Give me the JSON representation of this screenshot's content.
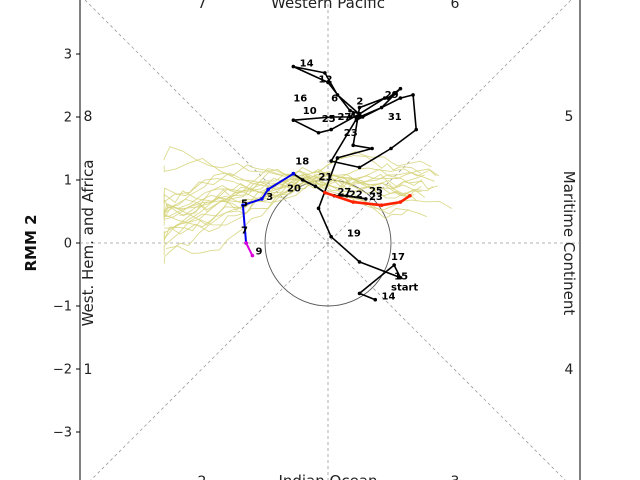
{
  "chart_data": {
    "type": "line",
    "ylabel": "RMM 2",
    "xlim": [
      -4,
      4
    ],
    "ylim": [
      -3.8,
      3.8
    ],
    "yticks": [
      3,
      2,
      1,
      0,
      -1,
      -2,
      -3
    ],
    "ytick_labels": [
      "3",
      "2",
      "1",
      "0",
      "−1",
      "−2",
      "−3"
    ],
    "unit_circle_radius": 1,
    "phase_labels": [
      "1",
      "2",
      "3",
      "4",
      "5",
      "6",
      "7",
      "8"
    ],
    "region_labels": {
      "left": "West. Hem. and Africa",
      "right": "Maritime Continent",
      "top": "Western Pacific",
      "bottom": "Indian Ocean"
    },
    "colors": {
      "ensemble": "#d6d37a",
      "observed": "#000000",
      "segment_a": "#0000ee",
      "segment_b": "#dd00dd",
      "segment_c": "#ff2200"
    },
    "observed": {
      "x": [
        0.75,
        0.5,
        1.05,
        1.15,
        0.5,
        0.05,
        -0.15,
        0.15,
        0.7,
        0.4,
        0.5,
        0.9,
        0.5,
        0.05,
        -0.15,
        -0.55,
        0.05,
        0.55,
        0.15,
        -0.05,
        -0.55,
        0.0,
        0.35,
        0.5,
        0.05,
        0.5,
        1.0,
        1.4,
        1.35,
        1.15,
        0.45,
        0.4,
        0.35,
        0.5,
        0.85,
        1.15,
        0.95
      ],
      "y": [
        -0.9,
        -0.8,
        -0.35,
        -0.55,
        -0.3,
        0.1,
        0.55,
        1.35,
        1.5,
        1.55,
        2.15,
        2.3,
        2.05,
        1.8,
        1.75,
        1.95,
        2.0,
        2.0,
        2.35,
        2.7,
        2.8,
        2.55,
        2.1,
        2.05,
        1.3,
        1.2,
        1.5,
        1.8,
        2.35,
        2.3,
        1.95,
        2.05,
        2.0,
        2.0,
        2.15,
        2.45,
        2.3
      ]
    },
    "observed_labels": [
      {
        "text": "start",
        "x": 1.0,
        "y": -0.75
      },
      {
        "text": "15",
        "x": 1.05,
        "y": -0.58
      },
      {
        "text": "14",
        "x": 0.85,
        "y": -0.9
      },
      {
        "text": "17",
        "x": 1.0,
        "y": -0.27
      },
      {
        "text": "19",
        "x": 0.3,
        "y": 0.1
      },
      {
        "text": "21",
        "x": -0.15,
        "y": 1.0
      },
      {
        "text": "23",
        "x": 0.25,
        "y": 1.7
      },
      {
        "text": "25",
        "x": -0.1,
        "y": 1.92
      },
      {
        "text": "27",
        "x": 0.15,
        "y": 1.95
      },
      {
        "text": "2",
        "x": 0.45,
        "y": 2.2
      },
      {
        "text": "29",
        "x": 0.9,
        "y": 2.3
      },
      {
        "text": "31",
        "x": 0.95,
        "y": 1.95
      },
      {
        "text": "6",
        "x": 0.05,
        "y": 2.25
      },
      {
        "text": "10",
        "x": -0.4,
        "y": 2.05
      },
      {
        "text": "12",
        "x": -0.15,
        "y": 2.55
      },
      {
        "text": "14",
        "x": -0.45,
        "y": 2.8
      },
      {
        "text": "16",
        "x": -0.55,
        "y": 2.25
      }
    ],
    "forecast": {
      "x": [
        -0.55,
        -0.4,
        -0.2,
        -0.05,
        0.1,
        0.3,
        0.6
      ],
      "y": [
        1.1,
        1.0,
        0.9,
        0.8,
        0.75,
        0.75,
        0.7
      ]
    },
    "forecast_blue": {
      "x": [
        -0.55,
        -0.95,
        -1.05,
        -1.35,
        -1.3
      ],
      "y": [
        1.1,
        0.85,
        0.7,
        0.6,
        0.0
      ]
    },
    "forecast_magenta": {
      "x": [
        -1.3,
        -1.2
      ],
      "y": [
        0.0,
        -0.2
      ]
    },
    "forecast_red": {
      "x": [
        -0.05,
        0.4,
        0.85,
        1.15,
        1.3
      ],
      "y": [
        0.8,
        0.65,
        0.6,
        0.65,
        0.75
      ]
    },
    "forecast_labels": [
      {
        "text": "18",
        "x": -0.52,
        "y": 1.25
      },
      {
        "text": "20",
        "x": -0.65,
        "y": 0.82
      },
      {
        "text": "3",
        "x": -0.98,
        "y": 0.68
      },
      {
        "text": "5",
        "x": -1.38,
        "y": 0.58
      },
      {
        "text": "7",
        "x": -1.38,
        "y": 0.15
      },
      {
        "text": "9",
        "x": -1.15,
        "y": -0.18
      },
      {
        "text": "27",
        "x": 0.15,
        "y": 0.76
      },
      {
        "text": "22",
        "x": 0.33,
        "y": 0.72
      },
      {
        "text": "25",
        "x": 0.65,
        "y": 0.78
      },
      {
        "text": "23",
        "x": 0.65,
        "y": 0.68
      }
    ]
  }
}
